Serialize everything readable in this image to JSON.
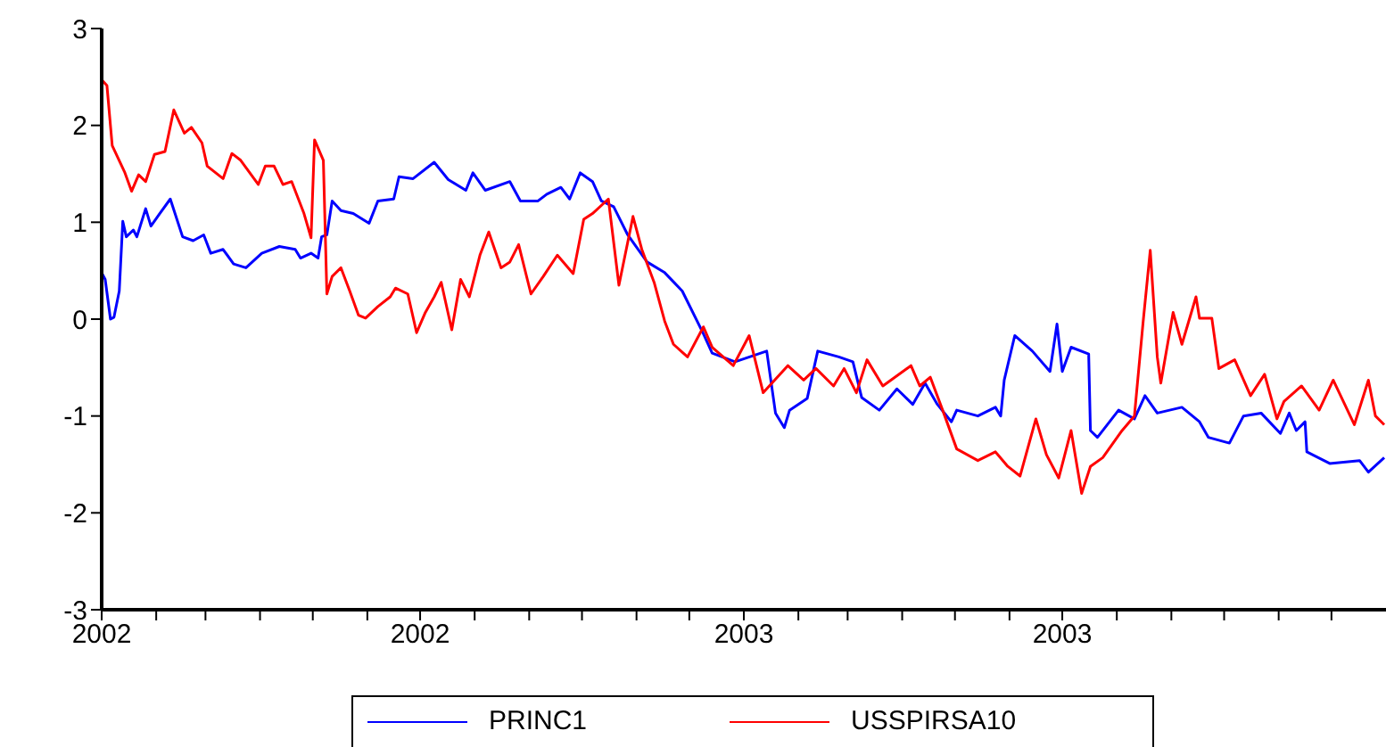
{
  "chart_data": {
    "type": "line",
    "xlim": [
      "2002-01-01",
      "2004-01-01"
    ],
    "xticks": [
      {
        "value": "2002-01-01",
        "label": "2002"
      },
      {
        "value": "2002-02-01",
        "label": null
      },
      {
        "value": "2002-03-01",
        "label": null
      },
      {
        "value": "2002-04-01",
        "label": null
      },
      {
        "value": "2002-05-01",
        "label": null
      },
      {
        "value": "2002-06-01",
        "label": null
      },
      {
        "value": "2002-07-01",
        "label": "2002"
      },
      {
        "value": "2002-08-01",
        "label": null
      },
      {
        "value": "2002-09-01",
        "label": null
      },
      {
        "value": "2002-10-01",
        "label": null
      },
      {
        "value": "2002-11-01",
        "label": null
      },
      {
        "value": "2002-12-01",
        "label": null
      },
      {
        "value": "2003-01-01",
        "label": "2003"
      },
      {
        "value": "2003-02-01",
        "label": null
      },
      {
        "value": "2003-03-01",
        "label": null
      },
      {
        "value": "2003-04-01",
        "label": null
      },
      {
        "value": "2003-05-01",
        "label": null
      },
      {
        "value": "2003-06-01",
        "label": null
      },
      {
        "value": "2003-07-01",
        "label": "2003"
      },
      {
        "value": "2003-08-01",
        "label": null
      },
      {
        "value": "2003-09-01",
        "label": null
      },
      {
        "value": "2003-10-01",
        "label": null
      },
      {
        "value": "2003-11-01",
        "label": null
      },
      {
        "value": "2003-12-01",
        "label": null
      }
    ],
    "ylim": [
      -3,
      3
    ],
    "yticks": [
      -3,
      -2,
      -1,
      0,
      1,
      2,
      3
    ],
    "legend": "bottom",
    "marker": "none",
    "line_style": "solid",
    "series": [
      {
        "name": "PRINC1",
        "color": "#0000ff",
        "x": [
          "2002-01-01",
          "2002-01-03",
          "2002-01-06",
          "2002-01-08",
          "2002-01-11",
          "2002-01-13",
          "2002-01-15",
          "2002-01-19",
          "2002-01-21",
          "2002-01-26",
          "2002-01-29",
          "2002-02-03",
          "2002-02-09",
          "2002-02-16",
          "2002-02-22",
          "2002-02-28",
          "2002-03-04",
          "2002-03-11",
          "2002-03-17",
          "2002-03-24",
          "2002-04-02",
          "2002-04-12",
          "2002-04-21",
          "2002-04-24",
          "2002-04-30",
          "2002-05-04",
          "2002-05-06",
          "2002-05-09",
          "2002-05-12",
          "2002-05-17",
          "2002-05-24",
          "2002-06-02",
          "2002-06-07",
          "2002-06-16",
          "2002-06-19",
          "2002-06-27",
          "2002-07-09",
          "2002-07-17",
          "2002-07-27",
          "2002-07-31",
          "2002-08-07",
          "2002-08-21",
          "2002-08-27",
          "2002-09-06",
          "2002-09-11",
          "2002-09-19",
          "2002-09-24",
          "2002-09-30",
          "2002-10-07",
          "2002-10-12",
          "2002-10-19",
          "2002-10-27",
          "2002-11-07",
          "2002-11-17",
          "2002-11-27",
          "2002-12-09",
          "2002-12-14",
          "2002-12-27",
          "2003-01-14",
          "2003-01-19",
          "2003-01-24",
          "2003-01-27",
          "2003-02-06",
          "2003-02-12",
          "2003-02-24",
          "2003-03-04",
          "2003-03-09",
          "2003-03-19",
          "2003-03-29",
          "2003-04-07",
          "2003-04-14",
          "2003-04-21",
          "2003-04-29",
          "2003-05-02",
          "2003-05-14",
          "2003-05-24",
          "2003-05-27",
          "2003-05-29",
          "2003-06-04",
          "2003-06-14",
          "2003-06-24",
          "2003-06-28",
          "2003-07-01",
          "2003-07-06",
          "2003-07-16",
          "2003-07-17",
          "2003-07-21",
          "2003-08-02",
          "2003-08-11",
          "2003-08-17",
          "2003-08-24",
          "2003-09-07",
          "2003-09-17",
          "2003-09-22",
          "2003-10-04",
          "2003-10-12",
          "2003-10-22",
          "2003-11-02",
          "2003-11-07",
          "2003-11-11",
          "2003-11-16",
          "2003-11-17",
          "2003-11-30",
          "2003-12-17",
          "2003-12-22",
          "2003-12-31"
        ],
        "values": [
          0.48,
          0.41,
          0,
          0.02,
          0.29,
          1.01,
          0.85,
          0.92,
          0.85,
          1.14,
          0.96,
          1.09,
          1.24,
          0.85,
          0.81,
          0.87,
          0.68,
          0.72,
          0.57,
          0.53,
          0.68,
          0.75,
          0.72,
          0.63,
          0.68,
          0.63,
          0.85,
          0.87,
          1.22,
          1.12,
          1.09,
          0.99,
          1.22,
          1.24,
          1.47,
          1.45,
          1.62,
          1.44,
          1.33,
          1.51,
          1.33,
          1.42,
          1.22,
          1.22,
          1.29,
          1.36,
          1.24,
          1.51,
          1.42,
          1.22,
          1.16,
          0.87,
          0.59,
          0.48,
          0.29,
          -0.15,
          -0.35,
          -0.44,
          -0.33,
          -0.97,
          -1.12,
          -0.94,
          -0.82,
          -0.33,
          -0.39,
          -0.44,
          -0.81,
          -0.94,
          -0.72,
          -0.88,
          -0.66,
          -0.88,
          -1.06,
          -0.94,
          -1.0,
          -0.91,
          -1.0,
          -0.63,
          -0.17,
          -0.33,
          -0.54,
          -0.05,
          -0.54,
          -0.29,
          -0.36,
          -1.15,
          -1.22,
          -0.94,
          -1.03,
          -0.79,
          -0.97,
          -0.91,
          -1.06,
          -1.22,
          -1.28,
          -1.0,
          -0.97,
          -1.18,
          -0.97,
          -1.15,
          -1.06,
          -1.37,
          -1.49,
          -1.46,
          -1.58,
          -1.43
        ]
      },
      {
        "name": "USSPIRSA10",
        "color": "#ff0000",
        "x": [
          "2002-01-01",
          "2002-01-04",
          "2002-01-07",
          "2002-01-14",
          "2002-01-18",
          "2002-01-22",
          "2002-01-26",
          "2002-01-31",
          "2002-02-06",
          "2002-02-11",
          "2002-02-17",
          "2002-02-21",
          "2002-02-27",
          "2002-03-02",
          "2002-03-11",
          "2002-03-16",
          "2002-03-21",
          "2002-03-31",
          "2002-04-04",
          "2002-04-09",
          "2002-04-14",
          "2002-04-19",
          "2002-04-26",
          "2002-04-30",
          "2002-05-02",
          "2002-05-07",
          "2002-05-09",
          "2002-05-12",
          "2002-05-17",
          "2002-05-22",
          "2002-05-27",
          "2002-05-31",
          "2002-06-07",
          "2002-06-14",
          "2002-06-17",
          "2002-06-24",
          "2002-06-29",
          "2002-07-04",
          "2002-07-09",
          "2002-07-13",
          "2002-07-19",
          "2002-07-24",
          "2002-07-29",
          "2002-08-04",
          "2002-08-09",
          "2002-08-16",
          "2002-08-21",
          "2002-08-26",
          "2002-09-02",
          "2002-09-09",
          "2002-09-17",
          "2002-09-26",
          "2002-10-02",
          "2002-10-07",
          "2002-10-16",
          "2002-10-22",
          "2002-10-30",
          "2002-11-04",
          "2002-11-11",
          "2002-11-17",
          "2002-11-22",
          "2002-11-30",
          "2002-12-09",
          "2002-12-14",
          "2002-12-26",
          "2003-01-04",
          "2003-01-12",
          "2003-01-26",
          "2003-02-04",
          "2003-02-11",
          "2003-02-21",
          "2003-02-27",
          "2003-03-06",
          "2003-03-12",
          "2003-03-21",
          "2003-04-06",
          "2003-04-11",
          "2003-04-17",
          "2003-04-24",
          "2003-05-02",
          "2003-05-14",
          "2003-05-24",
          "2003-05-31",
          "2003-06-07",
          "2003-06-16",
          "2003-06-22",
          "2003-06-29",
          "2003-07-06",
          "2003-07-12",
          "2003-07-17",
          "2003-07-24",
          "2003-08-04",
          "2003-08-11",
          "2003-08-16",
          "2003-08-20",
          "2003-08-24",
          "2003-08-26",
          "2003-09-02",
          "2003-09-07",
          "2003-09-15",
          "2003-09-17",
          "2003-09-24",
          "2003-09-28",
          "2003-10-07",
          "2003-10-16",
          "2003-10-24",
          "2003-10-31",
          "2003-11-04",
          "2003-11-14",
          "2003-11-24",
          "2003-12-02",
          "2003-12-14",
          "2003-12-22",
          "2003-12-26",
          "2003-12-31"
        ],
        "values": [
          2.47,
          2.41,
          1.79,
          1.52,
          1.32,
          1.49,
          1.42,
          1.7,
          1.73,
          2.16,
          1.92,
          1.98,
          1.82,
          1.58,
          1.45,
          1.71,
          1.64,
          1.39,
          1.58,
          1.58,
          1.39,
          1.42,
          1.09,
          0.84,
          1.85,
          1.64,
          0.26,
          0.44,
          0.53,
          0.29,
          0.04,
          0.01,
          0.13,
          0.23,
          0.32,
          0.26,
          -0.14,
          0.07,
          0.23,
          0.38,
          -0.11,
          0.41,
          0.23,
          0.66,
          0.9,
          0.53,
          0.59,
          0.77,
          0.26,
          0.44,
          0.66,
          0.47,
          1.03,
          1.09,
          1.24,
          0.35,
          1.06,
          0.72,
          0.38,
          -0.02,
          -0.26,
          -0.39,
          -0.08,
          -0.29,
          -0.48,
          -0.17,
          -0.76,
          -0.48,
          -0.63,
          -0.51,
          -0.69,
          -0.51,
          -0.76,
          -0.42,
          -0.69,
          -0.48,
          -0.69,
          -0.6,
          -0.94,
          -1.34,
          -1.46,
          -1.37,
          -1.52,
          -1.62,
          -1.03,
          -1.4,
          -1.64,
          -1.15,
          -1.8,
          -1.52,
          -1.43,
          -1.15,
          -1.0,
          -0.02,
          0.71,
          -0.39,
          -0.66,
          0.07,
          -0.26,
          0.23,
          0.01,
          0.01,
          -0.51,
          -0.42,
          -0.79,
          -0.57,
          -1.03,
          -0.85,
          -0.69,
          -0.94,
          -0.63,
          -1.09,
          -0.63,
          -1.0,
          -1.09
        ]
      }
    ]
  }
}
